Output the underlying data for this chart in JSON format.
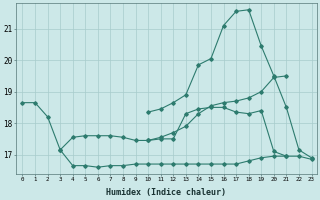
{
  "xlabel": "Humidex (Indice chaleur)",
  "bg_color": "#cce8e8",
  "grid_color": "#a8cccc",
  "line_color": "#2d7b6e",
  "xlim": [
    -0.5,
    23.4
  ],
  "ylim": [
    16.4,
    21.8
  ],
  "yticks": [
    17,
    18,
    19,
    20,
    21
  ],
  "xticks": [
    0,
    1,
    2,
    3,
    4,
    5,
    6,
    7,
    8,
    9,
    10,
    11,
    12,
    13,
    14,
    15,
    16,
    17,
    18,
    19,
    20,
    21,
    22,
    23
  ],
  "line1_y": [
    18.65,
    18.65,
    18.2,
    17.15,
    17.55,
    17.6,
    17.6,
    17.6,
    17.55,
    17.45,
    17.45,
    17.5,
    17.5,
    18.3,
    18.45,
    18.5,
    18.5,
    18.35,
    18.3,
    18.4,
    17.1,
    16.95,
    null,
    null
  ],
  "line2_y": [
    null,
    null,
    null,
    17.15,
    16.65,
    16.65,
    16.6,
    16.65,
    16.65,
    16.7,
    16.7,
    16.7,
    16.7,
    16.7,
    16.7,
    16.7,
    16.7,
    16.7,
    16.8,
    16.9,
    16.95,
    16.95,
    16.95,
    16.85
  ],
  "line3_y": [
    null,
    null,
    null,
    null,
    null,
    null,
    null,
    null,
    null,
    null,
    17.45,
    17.55,
    17.7,
    17.9,
    18.3,
    18.55,
    18.65,
    18.7,
    18.8,
    19.0,
    19.45,
    19.5,
    null,
    null
  ],
  "line4_y": [
    null,
    null,
    null,
    null,
    null,
    null,
    null,
    null,
    null,
    null,
    18.35,
    18.45,
    18.65,
    18.9,
    19.85,
    20.05,
    21.1,
    21.55,
    21.6,
    20.45,
    19.5,
    18.5,
    17.15,
    16.9
  ]
}
